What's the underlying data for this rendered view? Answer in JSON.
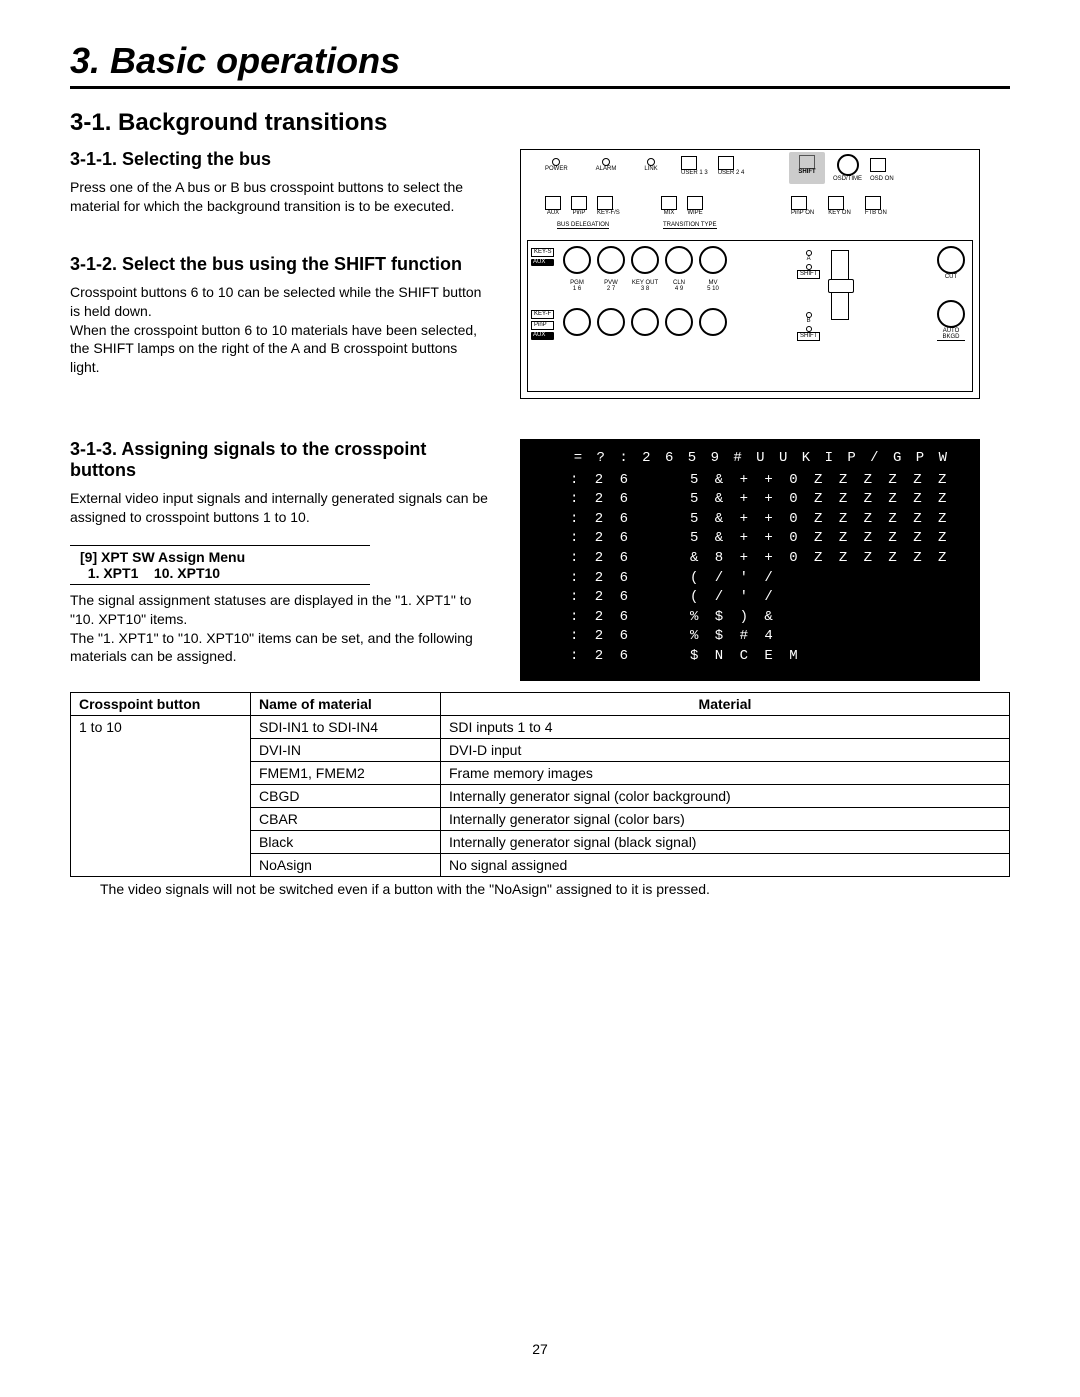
{
  "chapter": "3. Basic operations",
  "section": "3-1. Background transitions",
  "sub1": {
    "title": "3-1-1. Selecting the bus",
    "body": "Press one of the A bus or B bus crosspoint buttons to select the material for which the background transition is to be executed."
  },
  "sub2": {
    "title": "3-1-2. Select the bus using the SHIFT function",
    "body": "Crosspoint buttons 6 to 10 can be selected while the SHIFT button is held down.\nWhen the crosspoint button 6 to 10 materials have been selected, the SHIFT lamps on the right of the A and B crosspoint buttons light."
  },
  "sub3": {
    "title": "3-1-3. Assigning signals to the crosspoint buttons",
    "body1": "External video input signals and internally generated signals can be assigned to crosspoint buttons 1 to 10.",
    "menu_line1": "[9] XPT SW Assign Menu",
    "menu_line2": "  1. XPT1    10. XPT10",
    "body2": "The signal assignment statuses are displayed in the \"1. XPT1\" to \"10. XPT10\" items.\nThe \"1. XPT1\" to \"10. XPT10\" items can be set, and the following materials can be assigned."
  },
  "panel": {
    "top_leds": [
      "POWER",
      "ALARM",
      "LINK"
    ],
    "top_btns_left": [
      "USER 1 3",
      "USER 2 4"
    ],
    "top_btns_right": [
      "SHIFT",
      "OSD/TIME",
      "OSD ON"
    ],
    "mid_btns": [
      "AUX",
      "PinP",
      "KEY-F/S",
      "MIX",
      "WIPE",
      "PinP ON",
      "KEY ON",
      "FTB ON"
    ],
    "group1": "BUS DELEGATION",
    "group2": "TRANSITION TYPE",
    "rowA_tags": [
      "KEY-S",
      "AUX"
    ],
    "rowB_tags": [
      "KEY-F",
      "PinP",
      "AUX"
    ],
    "knob_labels": [
      {
        "top": "PGM",
        "bot": "1 6"
      },
      {
        "top": "PVW",
        "bot": "2 7"
      },
      {
        "top": "KEY OUT",
        "bot": "3 8"
      },
      {
        "top": "CLN",
        "bot": "4 9"
      },
      {
        "top": "MV",
        "bot": "5 10"
      }
    ],
    "shift_label": "SHIFT",
    "a_label": "A",
    "b_label": "B",
    "cut": "CUT",
    "auto": "AUTO",
    "bkgd": "BKGD"
  },
  "menu": {
    "header": "= ?  : 2 6   5 9   # U U K I P   / G P W",
    "rows": [
      {
        "c1": ": 2 6",
        "c2": "5 & +   + 0    Z Z Z Z Z Z"
      },
      {
        "c1": ": 2 6",
        "c2": "5 & +   + 0    Z Z Z Z Z Z"
      },
      {
        "c1": ": 2 6",
        "c2": "5 & +   + 0    Z Z Z Z Z Z"
      },
      {
        "c1": ": 2 6",
        "c2": "5 & +   + 0    Z Z Z Z Z Z"
      },
      {
        "c1": ": 2 6",
        "c2": "& 8 +   + 0    Z Z Z Z Z Z"
      },
      {
        "c1": ": 2 6",
        "c2": "( / ' /"
      },
      {
        "c1": ": 2 6",
        "c2": "( / ' /"
      },
      {
        "c1": ": 2 6",
        "c2": "% $ ) &"
      },
      {
        "c1": ": 2 6",
        "c2": "% $ # 4"
      },
      {
        "c1": ": 2 6",
        "c2": "$ N C E M"
      }
    ]
  },
  "table": {
    "headers": [
      "Crosspoint button",
      "Name of material",
      "Material"
    ],
    "col0": "1 to 10",
    "rows": [
      {
        "name": "SDI-IN1 to SDI-IN4",
        "mat": "SDI inputs 1 to 4"
      },
      {
        "name": "DVI-IN",
        "mat": "DVI-D input"
      },
      {
        "name": "FMEM1, FMEM2",
        "mat": "Frame memory images"
      },
      {
        "name": "CBGD",
        "mat": "Internally generator signal (color background)"
      },
      {
        "name": "CBAR",
        "mat": "Internally generator signal (color bars)"
      },
      {
        "name": "Black",
        "mat": "Internally generator signal (black signal)"
      },
      {
        "name": "NoAsign",
        "mat": "No signal assigned"
      }
    ],
    "note": " The video signals will not be switched even if a button with the \"NoAsign\" assigned to it is pressed."
  },
  "page": "27"
}
